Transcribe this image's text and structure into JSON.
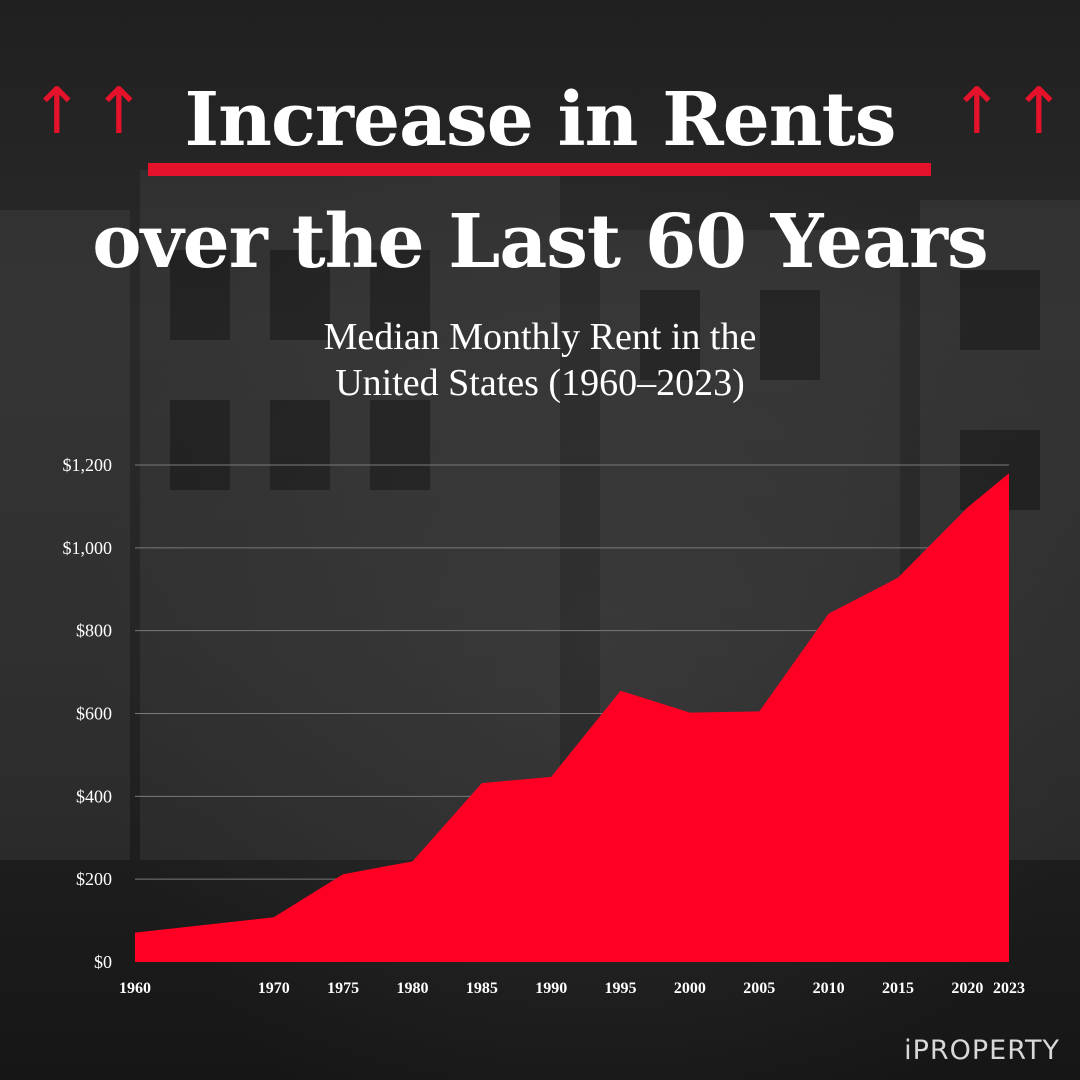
{
  "header": {
    "title_line1": "Increase in Rents",
    "title_line2": "over the Last 60 Years",
    "arrow_glyph": "↑",
    "subtitle_line1": "Median Monthly Rent in the",
    "subtitle_line2": "United States (1960–2023)"
  },
  "brand": {
    "name": "iPROPERTY"
  },
  "colors": {
    "accent": "#e4122b",
    "area_fill": "#ff0025",
    "text": "#ffffff",
    "grid": "#7a7a7a"
  },
  "chart_data": {
    "type": "area",
    "title": "Median Monthly Rent in the United States (1960–2023)",
    "categories": [
      "1960",
      "1970",
      "1975",
      "1980",
      "1985",
      "1990",
      "1995",
      "2000",
      "2005",
      "2010",
      "2015",
      "2020",
      "2023"
    ],
    "values": [
      71,
      108,
      212,
      243,
      432,
      447,
      655,
      602,
      605,
      841,
      928,
      1097,
      1180
    ],
    "y_ticks": [
      0,
      200,
      400,
      600,
      800,
      1000,
      1200
    ],
    "y_tick_labels": [
      "$0",
      "$200",
      "$400",
      "$600",
      "$800",
      "$1,000",
      "$1,200"
    ],
    "ylim": [
      0,
      1200
    ],
    "xlabel": "",
    "ylabel": "",
    "grid": "horizontal",
    "legend": "none"
  }
}
